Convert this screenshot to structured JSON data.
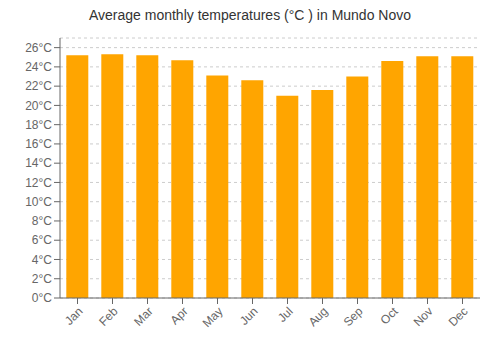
{
  "chart_data": {
    "type": "bar",
    "title": "Average monthly temperatures (°C ) in Mundo Novo",
    "categories": [
      "Jan",
      "Feb",
      "Mar",
      "Apr",
      "May",
      "Jun",
      "Jul",
      "Aug",
      "Sep",
      "Oct",
      "Nov",
      "Dec"
    ],
    "values": [
      25.2,
      25.3,
      25.2,
      24.7,
      23.1,
      22.6,
      21.0,
      21.6,
      23.0,
      24.6,
      25.1,
      25.1
    ],
    "color": "#FFA500",
    "ylim": [
      0,
      27
    ],
    "yticks": [
      {
        "value": 0,
        "label": "0°C"
      },
      {
        "value": 2,
        "label": "2°C"
      },
      {
        "value": 4,
        "label": "4°C"
      },
      {
        "value": 6,
        "label": "6°C"
      },
      {
        "value": 8,
        "label": "8°C"
      },
      {
        "value": 10,
        "label": "10°C"
      },
      {
        "value": 12,
        "label": "12°C"
      },
      {
        "value": 14,
        "label": "14°C"
      },
      {
        "value": 16,
        "label": "16°C"
      },
      {
        "value": 18,
        "label": "18°C"
      },
      {
        "value": 20,
        "label": "20°C"
      },
      {
        "value": 22,
        "label": "22°C"
      },
      {
        "value": 24,
        "label": "24°C"
      },
      {
        "value": 26,
        "label": "26°C"
      }
    ],
    "grid": true
  }
}
